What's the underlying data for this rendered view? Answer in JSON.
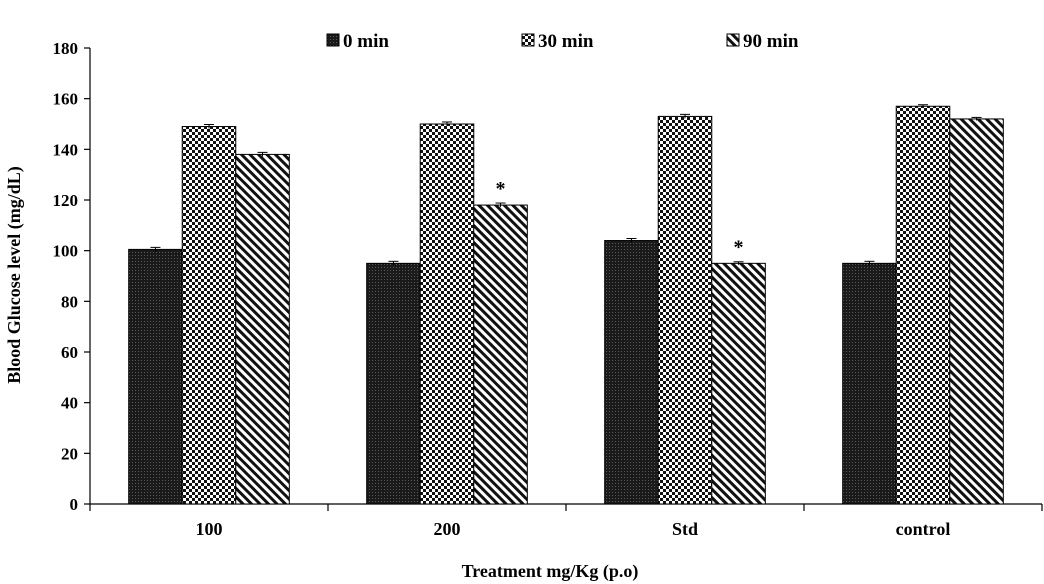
{
  "chart_data": {
    "type": "bar",
    "title": "",
    "xlabel": "Treatment mg/Kg (p.o)",
    "ylabel": "Blood Glucose level (mg/dL)",
    "categories": [
      "100",
      "200",
      "Std",
      "control"
    ],
    "ylim": [
      0,
      180
    ],
    "yticks": [
      0,
      20,
      40,
      60,
      80,
      100,
      120,
      140,
      160,
      180
    ],
    "grid": false,
    "legend_position": "top",
    "series": [
      {
        "name": "0 min",
        "pattern": "solid-dark",
        "values": [
          100.5,
          95,
          104,
          95
        ],
        "errors": [
          0.8,
          0.8,
          0.8,
          0.8
        ],
        "markers": [
          "",
          "",
          "",
          ""
        ]
      },
      {
        "name": "30 min",
        "pattern": "checkered",
        "values": [
          149,
          150,
          153,
          157
        ],
        "errors": [
          0.8,
          0.8,
          0.8,
          0.6
        ],
        "markers": [
          "",
          "",
          "",
          ""
        ]
      },
      {
        "name": "90 min",
        "pattern": "diagonal-hatch",
        "values": [
          138,
          118,
          95,
          152
        ],
        "errors": [
          0.8,
          0.8,
          0.6,
          0.6
        ],
        "markers": [
          "",
          "*",
          "*",
          ""
        ]
      }
    ]
  }
}
